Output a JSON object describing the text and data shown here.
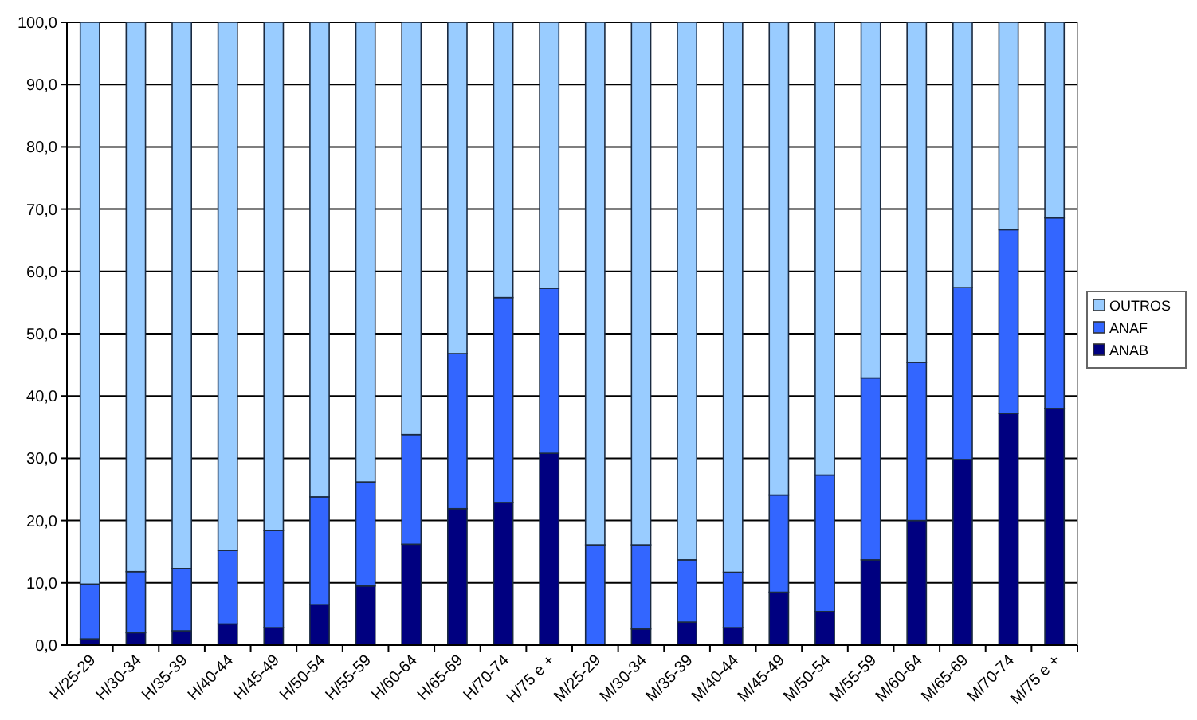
{
  "chart_data": {
    "type": "bar",
    "stacked": true,
    "categories": [
      "H/25-29",
      "H/30-34",
      "H/35-39",
      "H/40-44",
      "H/45-49",
      "H/50-54",
      "H/55-59",
      "H/60-64",
      "H/65-69",
      "H/70-74",
      "H/75 e +",
      "M/25-29",
      "M/30-34",
      "M/35-39",
      "M/40-44",
      "M/45-49",
      "M/50-54",
      "M/55-59",
      "M/60-64",
      "M/65-69",
      "M/70-74",
      "M/75 e +"
    ],
    "series": [
      {
        "name": "ANAB",
        "color": "#000080",
        "values": [
          1.0,
          2.0,
          2.3,
          3.4,
          2.8,
          6.5,
          9.5,
          16.2,
          21.9,
          22.9,
          30.8,
          0,
          2.6,
          3.7,
          2.8,
          8.5,
          5.4,
          13.7,
          20.0,
          29.8,
          37.2,
          38.0
        ]
      },
      {
        "name": "ANAF",
        "color": "#3366ff",
        "values": [
          8.8,
          9.8,
          10.0,
          11.8,
          15.6,
          17.3,
          16.7,
          17.6,
          24.9,
          32.9,
          26.5,
          16.1,
          13.5,
          10.0,
          8.9,
          15.6,
          21.9,
          29.2,
          25.4,
          27.6,
          29.5,
          30.6
        ]
      },
      {
        "name": "OUTROS",
        "color": "#99ccff",
        "values": [
          90.2,
          88.2,
          87.7,
          84.8,
          81.6,
          76.2,
          73.8,
          66.2,
          53.2,
          44.2,
          42.7,
          83.9,
          83.9,
          86.3,
          88.3,
          75.9,
          72.7,
          57.1,
          54.6,
          42.6,
          33.3,
          31.4
        ]
      }
    ],
    "ylim": [
      0,
      100
    ],
    "yticks": [
      {
        "value": 0,
        "label": "0,0"
      },
      {
        "value": 10,
        "label": "10,0"
      },
      {
        "value": 20,
        "label": "20,0"
      },
      {
        "value": 30,
        "label": "30,0"
      },
      {
        "value": 40,
        "label": "40,0"
      },
      {
        "value": 50,
        "label": "50,0"
      },
      {
        "value": 60,
        "label": "60,0"
      },
      {
        "value": 70,
        "label": "70,0"
      },
      {
        "value": 80,
        "label": "80,0"
      },
      {
        "value": 90,
        "label": "90,0"
      },
      {
        "value": 100,
        "label": "100,0"
      }
    ],
    "grid": "y",
    "legend": "right"
  }
}
